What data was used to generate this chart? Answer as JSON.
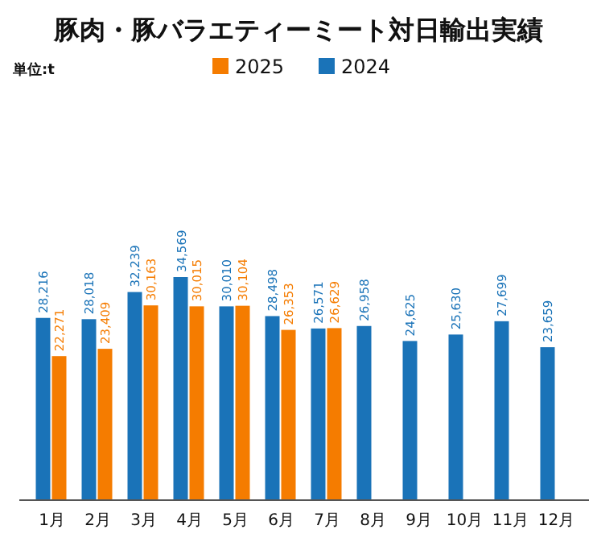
{
  "chart_data": {
    "type": "bar",
    "title": "豚肉・豚バラエティーミート対日輸出実績",
    "annotations": [
      "単位:t"
    ],
    "categories": [
      "1月",
      "2月",
      "3月",
      "4月",
      "5月",
      "6月",
      "7月",
      "8月",
      "9月",
      "10月",
      "11月",
      "12月"
    ],
    "series": [
      {
        "name": "2025",
        "color": "#f57c00",
        "values": [
          22271,
          23409,
          30163,
          30015,
          30104,
          26353,
          26629,
          null,
          null,
          null,
          null,
          null
        ],
        "value_labels": [
          "22,271",
          "23,409",
          "30,163",
          "30,015",
          "30,104",
          "26,353",
          "26,629",
          null,
          null,
          null,
          null,
          null
        ]
      },
      {
        "name": "2024",
        "color": "#1a73b8",
        "values": [
          28216,
          28018,
          32239,
          34569,
          30010,
          28498,
          26571,
          26958,
          24625,
          25630,
          27699,
          23659
        ],
        "value_labels": [
          "28,216",
          "28,018",
          "32,239",
          "34,569",
          "30,010",
          "28,498",
          "26,571",
          "26,958",
          "24,625",
          "25,630",
          "27,699",
          "23,659"
        ]
      }
    ],
    "legend": "top",
    "grid": false
  }
}
